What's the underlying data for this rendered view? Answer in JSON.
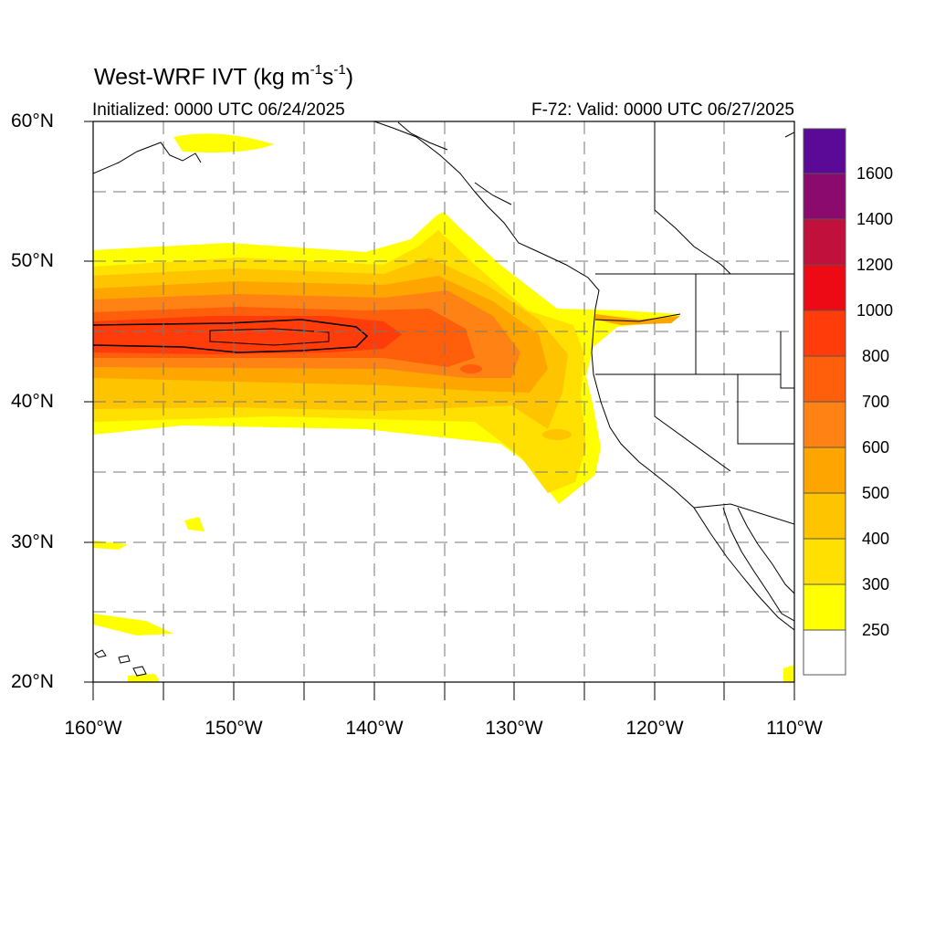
{
  "title": {
    "main": "West-WRF IVT (kg m",
    "exp1": "-1",
    "mid": "s",
    "exp2": "-1",
    "end": ")"
  },
  "subtitle_left": "Initialized: 0000 UTC 06/24/2025",
  "subtitle_right": "F-72: Valid: 0000 UTC 06/27/2025",
  "map": {
    "lon_range": [
      -160,
      -110
    ],
    "lat_range": [
      20,
      60
    ],
    "grid": "dashed",
    "lat_ticks": [
      {
        "value": 60,
        "label": "60°N"
      },
      {
        "value": 50,
        "label": "50°N"
      },
      {
        "value": 40,
        "label": "40°N"
      },
      {
        "value": 30,
        "label": "30°N"
      },
      {
        "value": 20,
        "label": "20°N"
      }
    ],
    "lon_ticks": [
      {
        "value": -160,
        "label": "160°W"
      },
      {
        "value": -150,
        "label": "150°W"
      },
      {
        "value": -140,
        "label": "140°W"
      },
      {
        "value": -130,
        "label": "130°W"
      },
      {
        "value": -120,
        "label": "120°W"
      },
      {
        "value": -110,
        "label": "110°W"
      }
    ]
  },
  "colorbar": {
    "labels": [
      "1600",
      "1400",
      "1200",
      "1000",
      "800",
      "700",
      "600",
      "500",
      "400",
      "300",
      "250"
    ],
    "colors": [
      "#5a0a96",
      "#8a0a6e",
      "#c2103c",
      "#ee0a14",
      "#ff3c0a",
      "#ff5e0a",
      "#ff8214",
      "#ffa500",
      "#ffc400",
      "#ffe000",
      "#ffff00",
      "#ffffff"
    ]
  }
}
